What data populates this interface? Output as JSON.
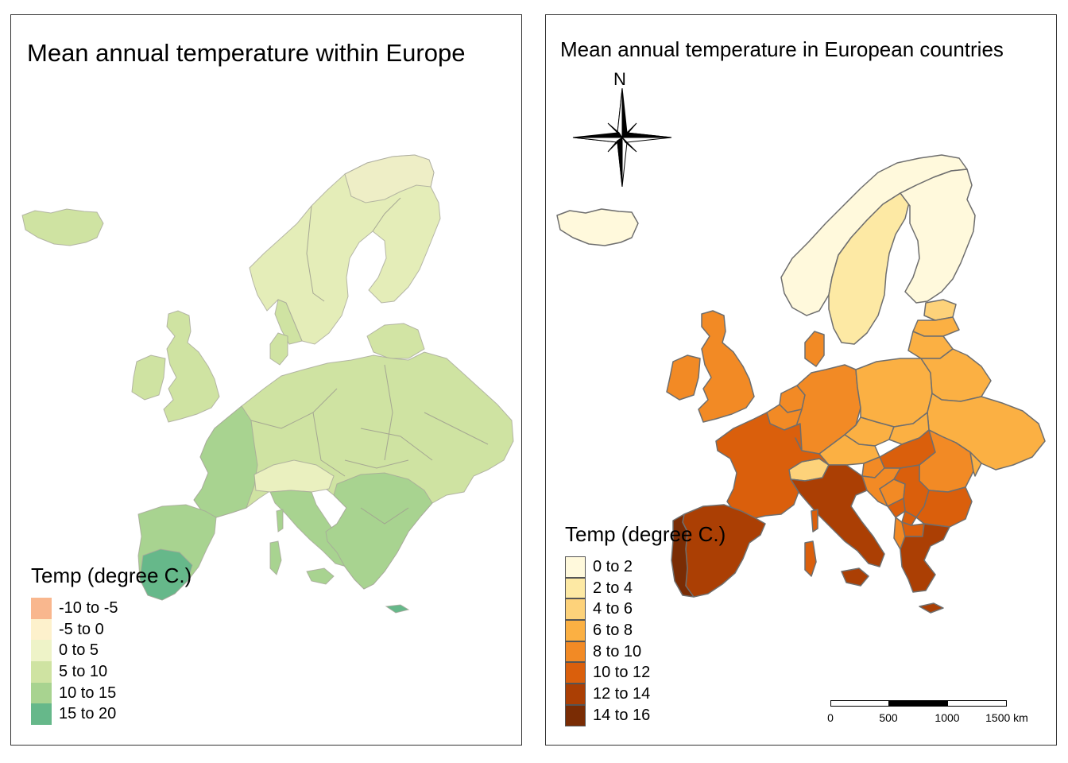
{
  "left_map": {
    "title": "Mean annual temperature within Europe",
    "legend": {
      "title": "Temp (degree C.)",
      "items": [
        {
          "label": "-10 to -5",
          "color": "#f9b78e"
        },
        {
          "label": "-5 to 0",
          "color": "#fdf1cc"
        },
        {
          "label": "0 to 5",
          "color": "#eef3c8"
        },
        {
          "label": "5 to 10",
          "color": "#cfe3a2"
        },
        {
          "label": "10 to 15",
          "color": "#a8d390"
        },
        {
          "label": "15 to 20",
          "color": "#66b88a"
        }
      ]
    }
  },
  "right_map": {
    "title": "Mean annual temperature in European countries",
    "north_arrow_label": "N",
    "legend": {
      "title": "Temp (degree C.)",
      "items": [
        {
          "label": "0 to 2",
          "color": "#fff9dc"
        },
        {
          "label": "2 to 4",
          "color": "#fde9a4"
        },
        {
          "label": "4 to 6",
          "color": "#fdd27a"
        },
        {
          "label": "6 to 8",
          "color": "#fbb043"
        },
        {
          "label": "8 to 10",
          "color": "#f28a25"
        },
        {
          "label": "10 to 12",
          "color": "#da5f0c"
        },
        {
          "label": "12 to 14",
          "color": "#ab3f04"
        },
        {
          "label": "14 to 16",
          "color": "#7a2c04"
        }
      ]
    },
    "scale_bar": {
      "labels": [
        "0",
        "500",
        "1000",
        "1500 km"
      ]
    }
  }
}
